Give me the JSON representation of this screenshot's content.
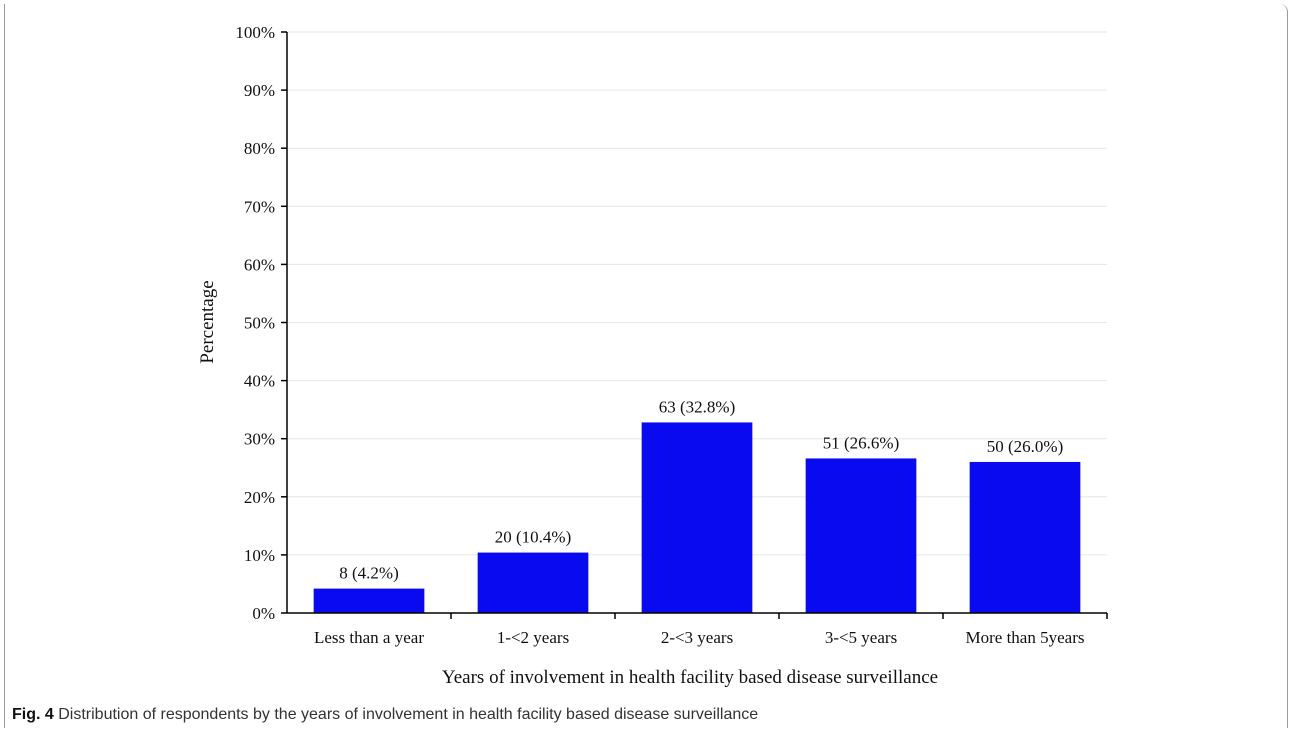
{
  "chart_data": {
    "type": "bar",
    "categories": [
      "Less than a year",
      "1-<2 years",
      "2-<3 years",
      "3-<5 years",
      "More than 5years"
    ],
    "values": [
      4.2,
      10.4,
      32.8,
      26.6,
      26.0
    ],
    "data_labels": [
      "8 (4.2%)",
      "20 (10.4%)",
      "63 (32.8%)",
      "51 (26.6%)",
      "50 (26.0%)"
    ],
    "yticks": [
      "0%",
      "10%",
      "20%",
      "30%",
      "40%",
      "50%",
      "60%",
      "70%",
      "80%",
      "90%",
      "100%"
    ],
    "ylim": [
      0,
      100
    ],
    "xlabel": "Years of involvement in health facility based disease surveillance",
    "ylabel": "Percentage",
    "bar_color": "#0a0af0",
    "grid": true
  },
  "caption": {
    "label": "Fig. 4",
    "text": " Distribution of respondents by the years of involvement in health facility based disease surveillance"
  }
}
